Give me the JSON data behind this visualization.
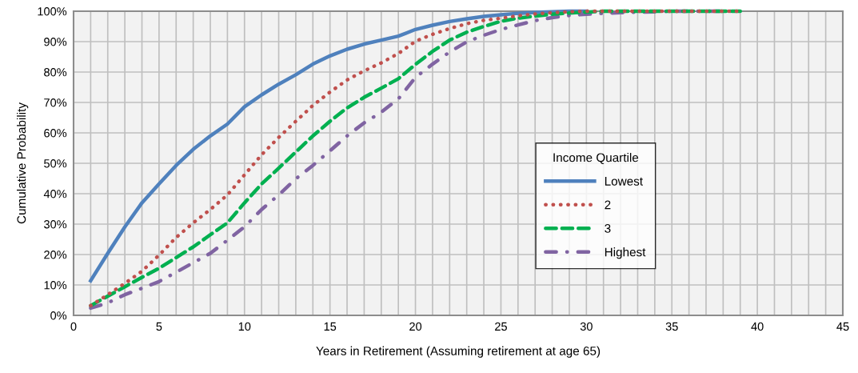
{
  "chart_data": {
    "type": "line",
    "xlabel": "Years in Retirement (Assuming retirement at age 65)",
    "ylabel": "Cumulative Probability",
    "legend_title": "Income Quartile",
    "x": [
      1,
      2,
      3,
      4,
      5,
      6,
      7,
      8,
      9,
      10,
      11,
      12,
      13,
      14,
      15,
      16,
      17,
      18,
      19,
      20,
      21,
      22,
      23,
      24,
      25,
      26,
      27,
      28,
      29,
      30,
      31,
      32,
      33,
      34,
      35,
      36,
      37,
      38,
      39
    ],
    "series": [
      {
        "name": "Lowest",
        "color": "#4f81bd",
        "line_style": "solid",
        "values": [
          11.4,
          20.4,
          29.1,
          37,
          43.2,
          49.3,
          54.6,
          59,
          62.9,
          68.6,
          72.5,
          76,
          79.1,
          82.6,
          85.3,
          87.5,
          89.2,
          90.5,
          91.8,
          94,
          95.4,
          96.6,
          97.5,
          98.3,
          98.8,
          99.3,
          99.6,
          99.8,
          100,
          100,
          null,
          null,
          null,
          null,
          null,
          null,
          null,
          null,
          null
        ]
      },
      {
        "name": "2",
        "color": "#c0504d",
        "line_style": "dotted",
        "values": [
          3.2,
          6.8,
          10.5,
          14.5,
          19.8,
          25.6,
          30.4,
          34.8,
          39.6,
          46.2,
          52.8,
          58.5,
          63.8,
          69,
          73.4,
          77.4,
          80.4,
          83,
          86.1,
          90.1,
          92.4,
          94.3,
          95.9,
          97,
          97.7,
          98.5,
          99.1,
          99.5,
          99.8,
          100,
          100,
          100,
          100,
          100,
          100,
          100,
          100,
          100,
          100
        ]
      },
      {
        "name": "3",
        "color": "#00b050",
        "line_style": "dashed",
        "values": [
          3.2,
          6.3,
          9.4,
          12.5,
          15.5,
          19,
          22.5,
          26.5,
          30.4,
          37,
          43.2,
          48.4,
          53.7,
          59,
          63.8,
          68.2,
          71.7,
          74.7,
          77.8,
          82.5,
          86.8,
          90.5,
          93.1,
          95,
          96.7,
          97.7,
          98.4,
          99,
          99.4,
          99.7,
          100,
          100,
          100,
          100,
          100,
          100,
          100,
          100,
          100
        ]
      },
      {
        "name": "Highest",
        "color": "#8064a2",
        "line_style": "dashdot",
        "values": [
          2.4,
          4.1,
          6.8,
          8.9,
          11.1,
          14.2,
          17.3,
          20.4,
          24.7,
          29.1,
          34.8,
          39.6,
          44.9,
          49.3,
          54.1,
          59,
          63.3,
          66.8,
          71.2,
          78.2,
          82.6,
          86.6,
          89.9,
          92.1,
          94,
          95.5,
          96.9,
          97.9,
          98.6,
          99,
          99.3,
          99.5,
          99.7,
          99.8,
          100,
          100,
          100,
          100,
          100
        ]
      }
    ],
    "xlim": [
      0,
      45
    ],
    "xticks": [
      0,
      {
        "value": 1,
        "label": null
      },
      {
        "value": 2,
        "label": null
      },
      {
        "value": 3,
        "label": null
      },
      {
        "value": 4,
        "label": null
      },
      5,
      {
        "value": 6,
        "label": null
      },
      {
        "value": 7,
        "label": null
      },
      {
        "value": 8,
        "label": null
      },
      {
        "value": 9,
        "label": null
      },
      10,
      {
        "value": 11,
        "label": null
      },
      {
        "value": 12,
        "label": null
      },
      {
        "value": 13,
        "label": null
      },
      {
        "value": 14,
        "label": null
      },
      15,
      {
        "value": 16,
        "label": null
      },
      {
        "value": 17,
        "label": null
      },
      {
        "value": 18,
        "label": null
      },
      {
        "value": 19,
        "label": null
      },
      20,
      {
        "value": 21,
        "label": null
      },
      {
        "value": 22,
        "label": null
      },
      {
        "value": 23,
        "label": null
      },
      {
        "value": 24,
        "label": null
      },
      25,
      {
        "value": 26,
        "label": null
      },
      {
        "value": 27,
        "label": null
      },
      {
        "value": 28,
        "label": null
      },
      {
        "value": 29,
        "label": null
      },
      30,
      {
        "value": 31,
        "label": null
      },
      {
        "value": 32,
        "label": null
      },
      {
        "value": 33,
        "label": null
      },
      {
        "value": 34,
        "label": null
      },
      35,
      {
        "value": 36,
        "label": null
      },
      {
        "value": 37,
        "label": null
      },
      {
        "value": 38,
        "label": null
      },
      {
        "value": 39,
        "label": null
      },
      40,
      {
        "value": 41,
        "label": null
      },
      {
        "value": 42,
        "label": null
      },
      {
        "value": 43,
        "label": null
      },
      {
        "value": 44,
        "label": null
      },
      45
    ],
    "ylim": [
      0,
      100
    ],
    "yticks": [
      {
        "value": 0,
        "label": "0%"
      },
      {
        "value": 10,
        "label": "10%"
      },
      {
        "value": 20,
        "label": "20%"
      },
      {
        "value": 30,
        "label": "30%"
      },
      {
        "value": 40,
        "label": "40%"
      },
      {
        "value": 50,
        "label": "50%"
      },
      {
        "value": 60,
        "label": "60%"
      },
      {
        "value": 70,
        "label": "70%"
      },
      {
        "value": 80,
        "label": "80%"
      },
      {
        "value": 90,
        "label": "90%"
      },
      {
        "value": 100,
        "label": "100%"
      }
    ],
    "grid": true,
    "legend": "right",
    "marker": "none"
  }
}
